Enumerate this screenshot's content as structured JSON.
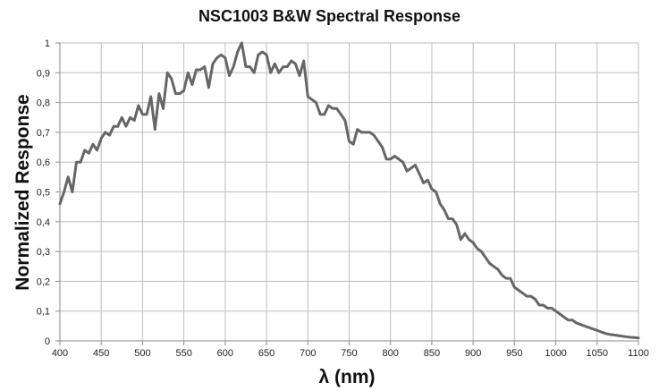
{
  "chart_data": {
    "type": "line",
    "title": "NSC1003 B&W Spectral Response",
    "xlabel": "λ (nm)",
    "ylabel": "Normalized Response",
    "xlim": [
      400,
      1100
    ],
    "ylim": [
      0,
      1
    ],
    "grid": true,
    "legend": "none",
    "x_ticks": [
      "400",
      "450",
      "500",
      "550",
      "600",
      "650",
      "700",
      "750",
      "800",
      "850",
      "900",
      "950",
      "1000",
      "1050",
      "1100"
    ],
    "y_ticks": [
      "0",
      "0,1",
      "0,2",
      "0,3",
      "0,4",
      "0,5",
      "0,6",
      "0,7",
      "0,8",
      "0,9",
      "1"
    ],
    "line_color": "#666666",
    "series": [
      {
        "x": [
          400,
          405,
          410,
          415,
          420,
          425,
          430,
          435,
          440,
          445,
          450,
          455,
          460,
          465,
          470,
          475,
          480,
          485,
          490,
          495,
          500,
          505,
          510,
          515,
          520,
          525,
          530,
          535,
          540,
          545,
          550,
          555,
          560,
          565,
          570,
          575,
          580,
          585,
          590,
          595,
          600,
          605,
          610,
          615,
          620,
          625,
          630,
          635,
          640,
          645,
          650,
          655,
          660,
          665,
          670,
          675,
          680,
          685,
          690,
          695,
          700,
          705,
          710,
          715,
          720,
          725,
          730,
          735,
          740,
          745,
          750,
          755,
          760,
          765,
          770,
          775,
          780,
          785,
          790,
          795,
          800,
          805,
          810,
          815,
          820,
          825,
          830,
          835,
          840,
          845,
          850,
          855,
          860,
          865,
          870,
          875,
          880,
          885,
          890,
          895,
          900,
          905,
          910,
          915,
          920,
          925,
          930,
          935,
          940,
          945,
          950,
          955,
          960,
          965,
          970,
          975,
          980,
          985,
          990,
          995,
          1000,
          1005,
          1010,
          1015,
          1020,
          1025,
          1030,
          1035,
          1040,
          1045,
          1050,
          1055,
          1060,
          1065,
          1070,
          1075,
          1080,
          1085,
          1090,
          1095,
          1100
        ],
        "y": [
          0.46,
          0.5,
          0.55,
          0.5,
          0.6,
          0.6,
          0.64,
          0.63,
          0.66,
          0.64,
          0.68,
          0.7,
          0.69,
          0.72,
          0.72,
          0.75,
          0.72,
          0.75,
          0.74,
          0.79,
          0.76,
          0.76,
          0.82,
          0.71,
          0.83,
          0.78,
          0.9,
          0.88,
          0.83,
          0.83,
          0.84,
          0.9,
          0.86,
          0.91,
          0.91,
          0.92,
          0.85,
          0.93,
          0.95,
          0.96,
          0.95,
          0.89,
          0.92,
          0.97,
          1.0,
          0.92,
          0.92,
          0.9,
          0.96,
          0.97,
          0.96,
          0.9,
          0.93,
          0.9,
          0.92,
          0.92,
          0.94,
          0.93,
          0.89,
          0.94,
          0.82,
          0.81,
          0.8,
          0.76,
          0.76,
          0.79,
          0.78,
          0.78,
          0.76,
          0.74,
          0.67,
          0.66,
          0.71,
          0.7,
          0.7,
          0.7,
          0.69,
          0.67,
          0.65,
          0.61,
          0.61,
          0.62,
          0.61,
          0.6,
          0.57,
          0.58,
          0.59,
          0.56,
          0.53,
          0.54,
          0.51,
          0.5,
          0.46,
          0.44,
          0.41,
          0.41,
          0.39,
          0.34,
          0.36,
          0.34,
          0.33,
          0.31,
          0.3,
          0.28,
          0.26,
          0.25,
          0.24,
          0.22,
          0.21,
          0.21,
          0.18,
          0.17,
          0.16,
          0.15,
          0.15,
          0.14,
          0.12,
          0.12,
          0.11,
          0.11,
          0.1,
          0.09,
          0.08,
          0.07,
          0.07,
          0.06,
          0.055,
          0.05,
          0.045,
          0.04,
          0.035,
          0.03,
          0.025,
          0.022,
          0.02,
          0.018,
          0.016,
          0.014,
          0.012,
          0.011,
          0.01
        ]
      }
    ]
  }
}
